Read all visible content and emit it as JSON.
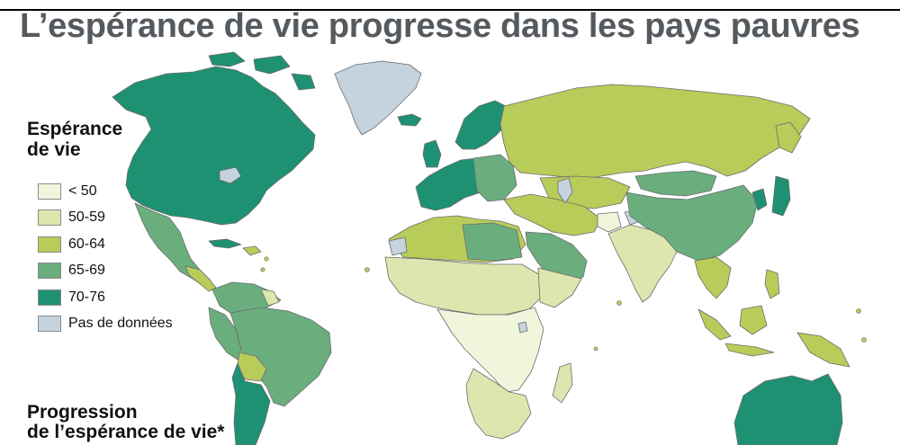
{
  "title": "L’espérance de vie progresse dans les pays pauvres",
  "legend": {
    "title_line1": "Espérance",
    "title_line2": "de vie",
    "items": [
      {
        "label": "< 50",
        "color": "#f1f5dc"
      },
      {
        "label": "50-59",
        "color": "#dde6ae"
      },
      {
        "label": "60-64",
        "color": "#b8cc5a"
      },
      {
        "label": "65-69",
        "color": "#6aae7e"
      },
      {
        "label": "70-76",
        "color": "#1e9172"
      },
      {
        "label": "Pas de données",
        "color": "#c5d3de"
      }
    ]
  },
  "progression": {
    "title_line1": "Progression",
    "title_line2": "de l’espérance de vie*"
  },
  "colors": {
    "border": "#6b6b6b",
    "lt50": "#f1f5dc",
    "r50_59": "#dde6ae",
    "r60_64": "#b8cc5a",
    "r65_69": "#6aae7e",
    "r70_76": "#1e9172",
    "nodata": "#c5d3de"
  }
}
